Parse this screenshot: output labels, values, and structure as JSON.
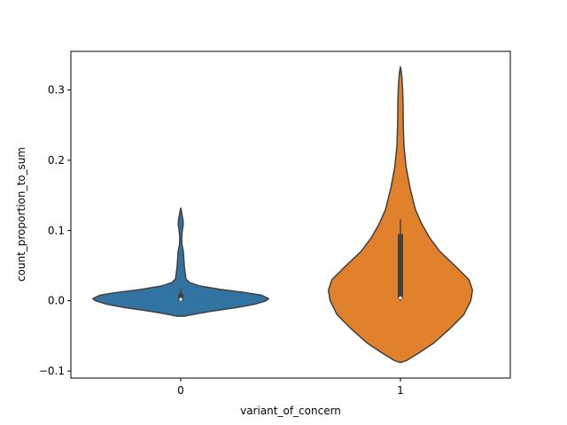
{
  "chart_data": {
    "type": "violin",
    "title": "",
    "xlabel": "variant_of_concern",
    "ylabel": "count_proportion_to_sum",
    "ylim": [
      -0.11,
      0.355
    ],
    "yticks": [
      -0.1,
      0.0,
      0.1,
      0.2,
      0.3
    ],
    "ytick_labels": [
      "−0.1",
      "0.0",
      "0.1",
      "0.2",
      "0.3"
    ],
    "categories": [
      "0",
      "1"
    ],
    "grid": false,
    "legend": "none",
    "violins": [
      {
        "category": "0",
        "color": "#3274a1",
        "profile": [
          [
            -0.022,
            0.04
          ],
          [
            -0.019,
            0.16
          ],
          [
            -0.015,
            0.34
          ],
          [
            -0.01,
            0.62
          ],
          [
            -0.005,
            0.84
          ],
          [
            0.0,
            0.97
          ],
          [
            0.003,
            1.0
          ],
          [
            0.008,
            0.92
          ],
          [
            0.012,
            0.72
          ],
          [
            0.016,
            0.46
          ],
          [
            0.021,
            0.22
          ],
          [
            0.026,
            0.1
          ],
          [
            0.031,
            0.06
          ],
          [
            0.04,
            0.05
          ],
          [
            0.05,
            0.04
          ],
          [
            0.06,
            0.035
          ],
          [
            0.07,
            0.03
          ],
          [
            0.08,
            0.014
          ],
          [
            0.09,
            0.011
          ],
          [
            0.1,
            0.018
          ],
          [
            0.108,
            0.028
          ],
          [
            0.115,
            0.026
          ],
          [
            0.122,
            0.015
          ],
          [
            0.128,
            0.007
          ],
          [
            0.132,
            0.0
          ]
        ],
        "box": {
          "q1": 0.0,
          "median": 0.002,
          "q3": 0.01,
          "whisker_low": 0.0,
          "whisker_high": 0.017
        }
      },
      {
        "category": "1",
        "color": "#e1812c",
        "profile": [
          [
            -0.088,
            0.0
          ],
          [
            -0.085,
            0.07
          ],
          [
            -0.075,
            0.2
          ],
          [
            -0.06,
            0.38
          ],
          [
            -0.04,
            0.56
          ],
          [
            -0.02,
            0.72
          ],
          [
            0.0,
            0.8
          ],
          [
            0.015,
            0.82
          ],
          [
            0.03,
            0.78
          ],
          [
            0.05,
            0.62
          ],
          [
            0.07,
            0.45
          ],
          [
            0.09,
            0.33
          ],
          [
            0.11,
            0.24
          ],
          [
            0.13,
            0.17
          ],
          [
            0.16,
            0.11
          ],
          [
            0.19,
            0.065
          ],
          [
            0.22,
            0.04
          ],
          [
            0.25,
            0.032
          ],
          [
            0.28,
            0.03
          ],
          [
            0.3,
            0.025
          ],
          [
            0.315,
            0.018
          ],
          [
            0.325,
            0.011
          ],
          [
            0.333,
            0.0
          ]
        ],
        "box": {
          "q1": 0.004,
          "median": 0.004,
          "q3": 0.095,
          "whisker_low": 0.0,
          "whisker_high": 0.116
        }
      }
    ]
  }
}
